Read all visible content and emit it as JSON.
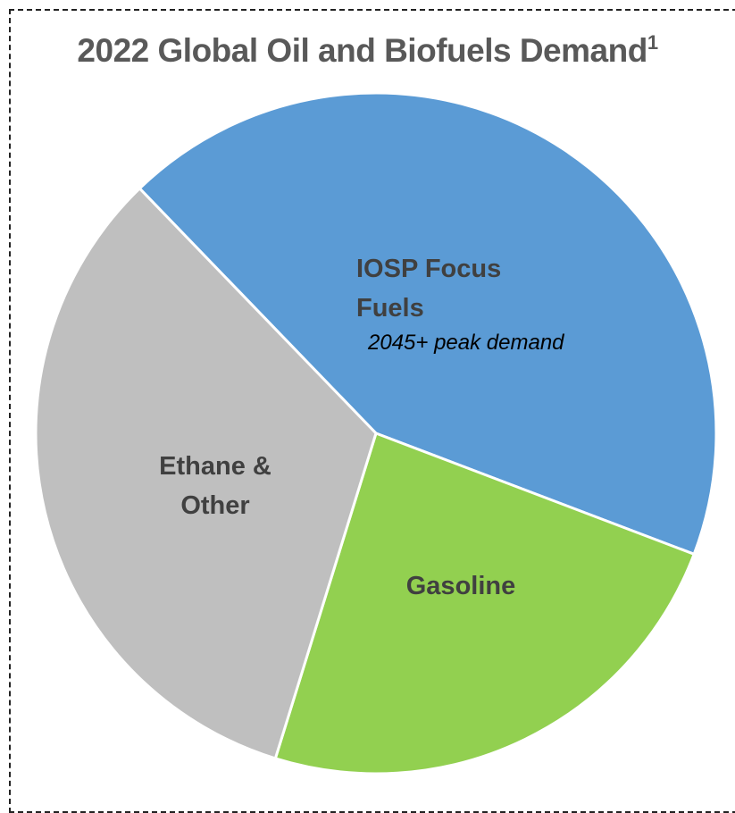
{
  "chart_data": {
    "type": "pie",
    "title": "2022 Global Oil and Biofuels Demand",
    "title_superscript": "1",
    "slices": [
      {
        "label_lines": [
          "IOSP Focus",
          "Fuels"
        ],
        "note": "2045+ peak demand",
        "value": 43,
        "color": "#5B9BD5"
      },
      {
        "label_lines": [
          "Gasoline"
        ],
        "note": "",
        "value": 24,
        "color": "#92D050"
      },
      {
        "label_lines": [
          "Ethane &",
          "Other"
        ],
        "note": "",
        "value": 33,
        "color": "#BFBFBF"
      }
    ],
    "legend": "none"
  }
}
